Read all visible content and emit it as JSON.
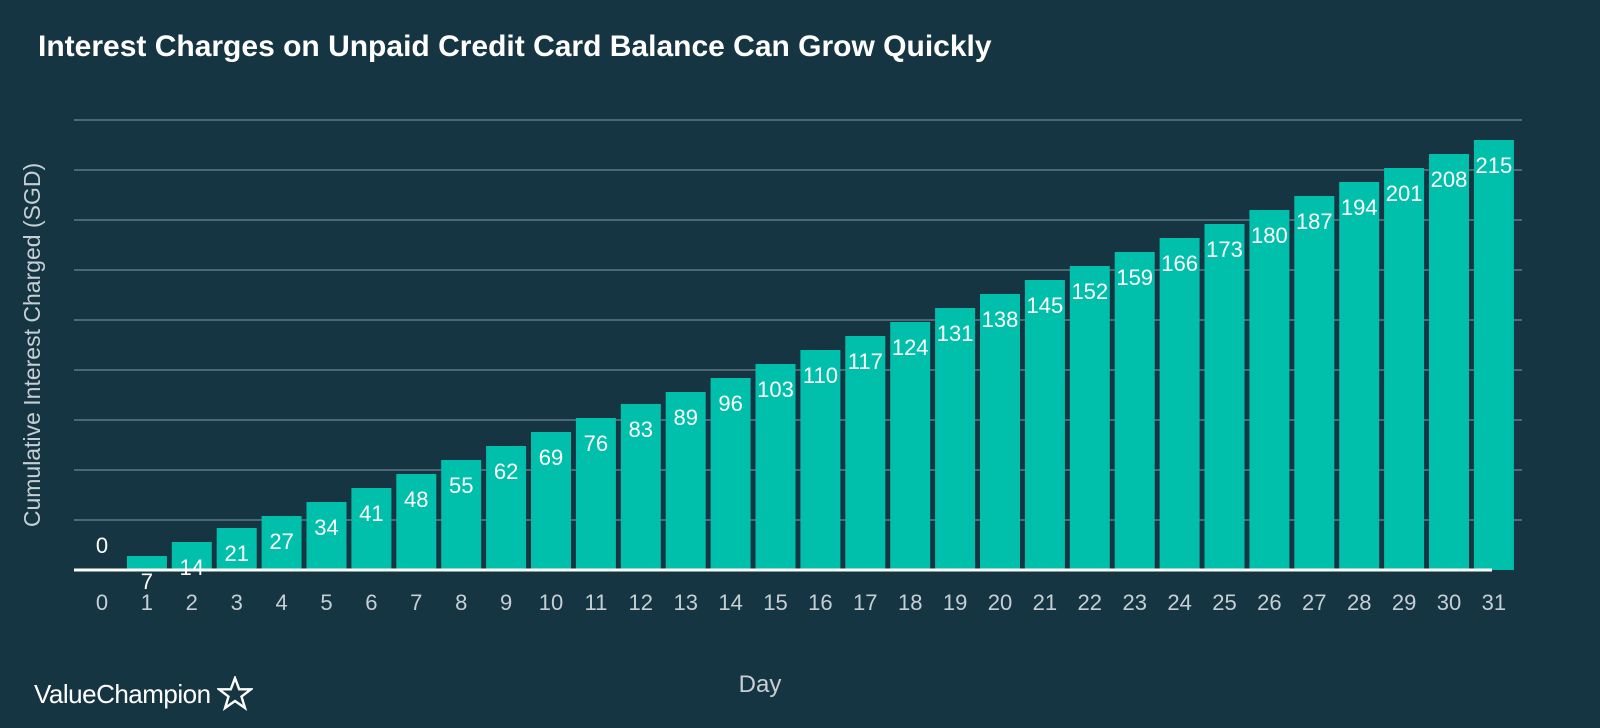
{
  "brand": {
    "name": "ValueChampion"
  },
  "colors": {
    "background": "#163543",
    "bar": "#00c0ac",
    "grid": "#6c8792",
    "axis_text": "#c6d0d4",
    "data_label": "#ffffff"
  },
  "chart_data": {
    "type": "bar",
    "title": "Interest Charges on Unpaid Credit Card Balance Can Grow Quickly",
    "xlabel": "Day",
    "ylabel": "Cumulative Interest Charged (SGD)",
    "categories": [
      "0",
      "1",
      "2",
      "3",
      "4",
      "5",
      "6",
      "7",
      "8",
      "9",
      "10",
      "11",
      "12",
      "13",
      "14",
      "15",
      "16",
      "17",
      "18",
      "19",
      "20",
      "21",
      "22",
      "23",
      "24",
      "25",
      "26",
      "27",
      "28",
      "29",
      "30",
      "31"
    ],
    "values": [
      0,
      7,
      14,
      21,
      27,
      34,
      41,
      48,
      55,
      62,
      69,
      76,
      83,
      89,
      96,
      103,
      110,
      117,
      124,
      131,
      138,
      145,
      152,
      159,
      166,
      173,
      180,
      187,
      194,
      201,
      208,
      215
    ],
    "ylim": [
      0,
      225
    ],
    "grid": true,
    "y_tick_labels_shown": false,
    "data_labels": true
  }
}
